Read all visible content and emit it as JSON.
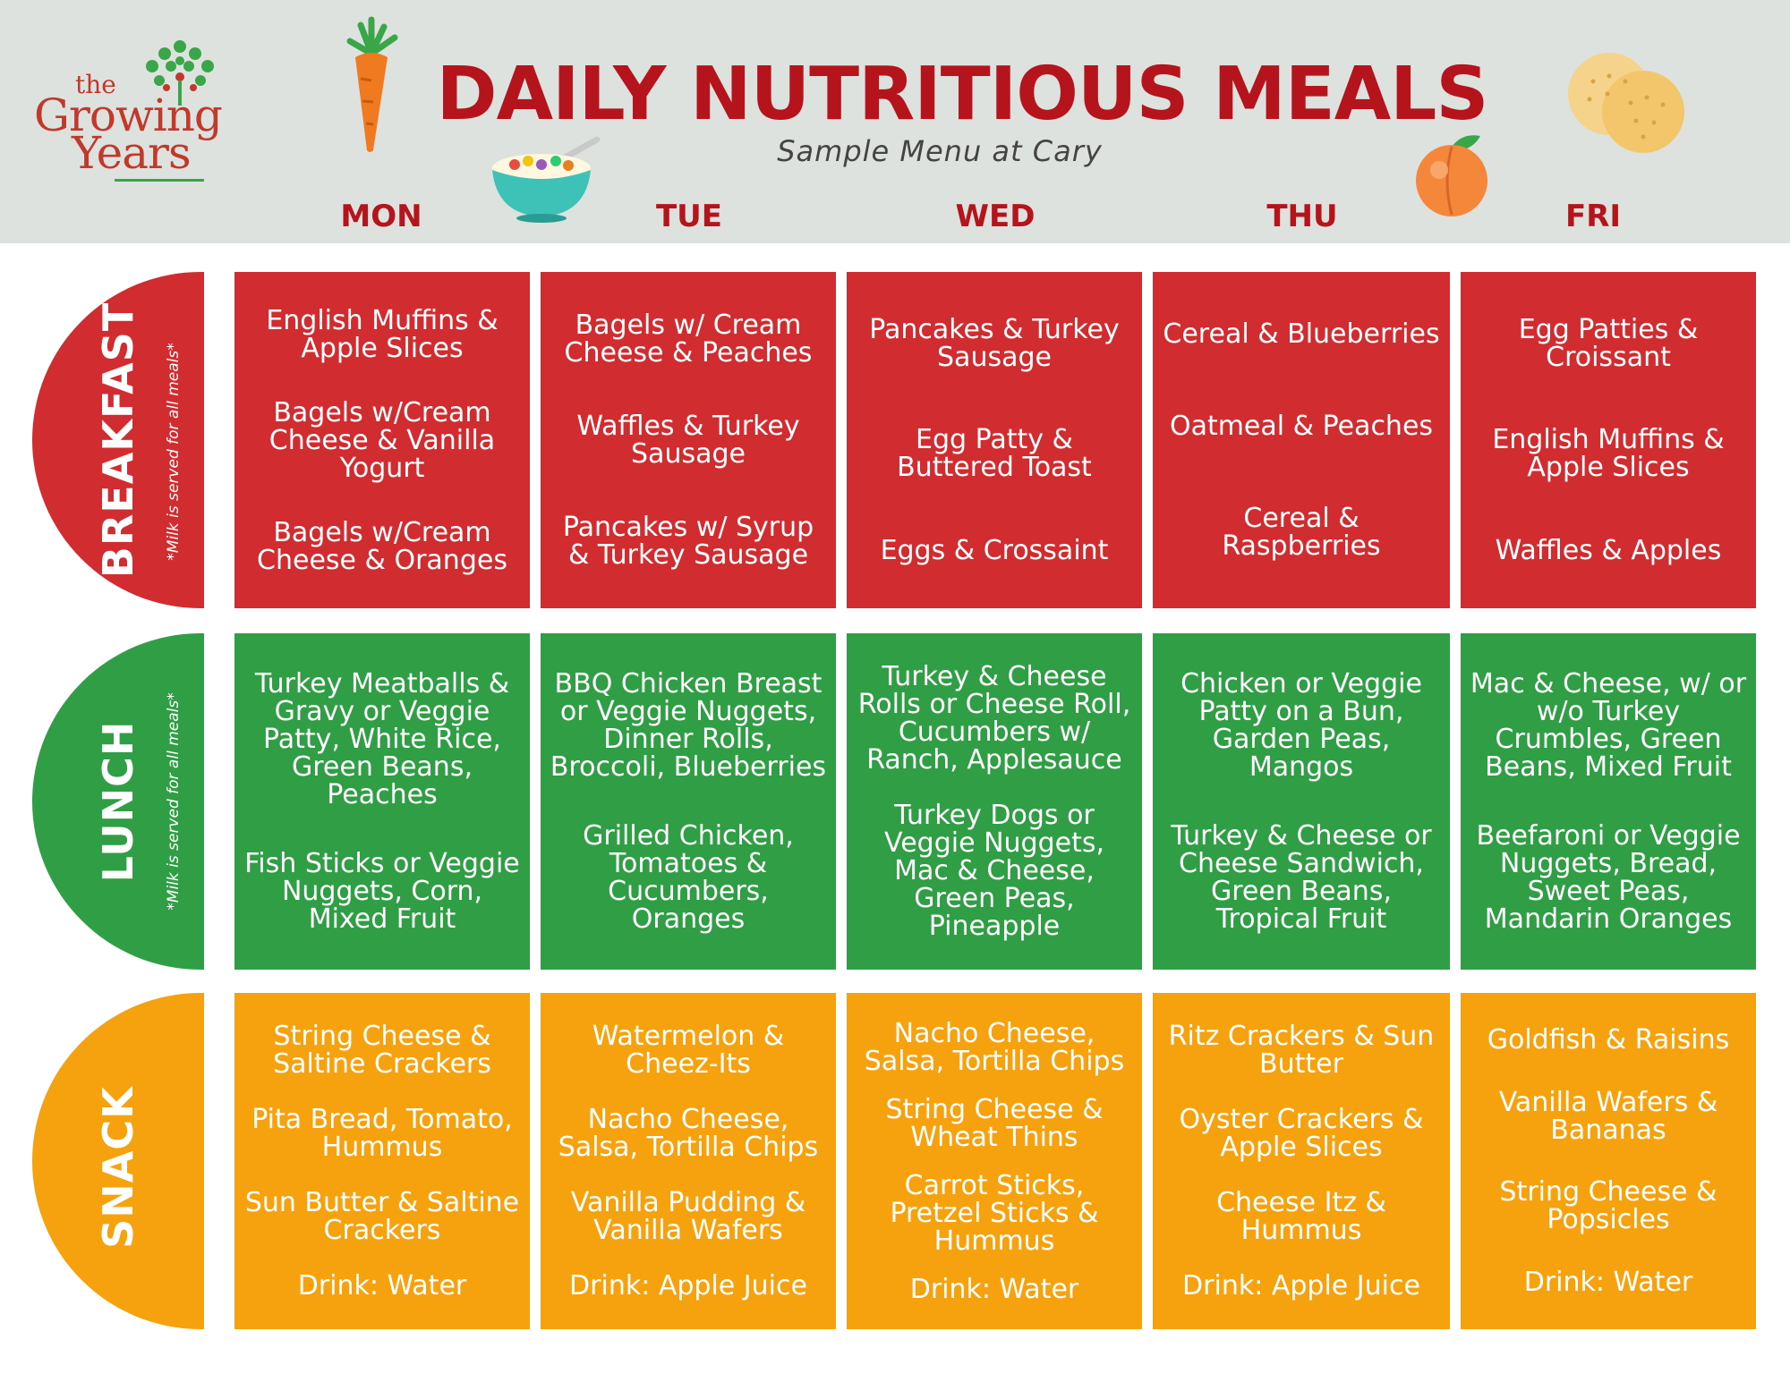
{
  "logo": {
    "line1": "the",
    "line2": "Growing",
    "line3": "Years"
  },
  "header": {
    "title": "DAILY NUTRITIOUS MEALS",
    "subtitle": "Sample Menu at Cary"
  },
  "days": [
    "MON",
    "TUE",
    "WED",
    "THU",
    "FRI"
  ],
  "colors": {
    "breakfast": "#d12d31",
    "lunch": "#2f9e44",
    "snack": "#f6a20f",
    "title": "#b5141c",
    "header_bg": "#dee2df"
  },
  "icons": [
    "carrot-icon",
    "cereal-bowl-icon",
    "peach-icon",
    "crackers-icon",
    "tree-icon"
  ],
  "rows": [
    {
      "label": "BREAKFAST",
      "note": "*Milk is served for all meals*",
      "cells": [
        [
          "English Muffins & Apple Slices",
          "Bagels w/Cream Cheese & Vanilla Yogurt",
          "Bagels w/Cream Cheese & Oranges"
        ],
        [
          "Bagels w/ Cream Cheese & Peaches",
          "Waffles & Turkey Sausage",
          "Pancakes w/ Syrup & Turkey Sausage"
        ],
        [
          "Pancakes & Turkey Sausage",
          "Egg Patty & Buttered Toast",
          "Eggs & Crossaint"
        ],
        [
          "Cereal & Blueberries",
          "Oatmeal & Peaches",
          "Cereal & Raspberries"
        ],
        [
          "Egg Patties & Croissant",
          "English Muffins & Apple Slices",
          "Waffles & Apples"
        ]
      ]
    },
    {
      "label": "LUNCH",
      "note": "*Milk is served for all meals*",
      "cells": [
        [
          "Turkey Meatballs & Gravy or Veggie Patty, White Rice, Green Beans, Peaches",
          "Fish Sticks or Veggie Nuggets, Corn, Mixed Fruit"
        ],
        [
          "BBQ Chicken Breast or Veggie Nuggets, Dinner Rolls, Broccoli, Blueberries",
          "Grilled Chicken, Tomatoes & Cucumbers, Oranges"
        ],
        [
          "Turkey & Cheese Rolls or Cheese Roll, Cucumbers w/ Ranch, Applesauce",
          "Turkey Dogs or Veggie Nuggets, Mac & Cheese, Green Peas, Pineapple"
        ],
        [
          "Chicken or Veggie Patty on a Bun, Garden Peas, Mangos",
          "Turkey & Cheese or Cheese Sandwich, Green Beans, Tropical Fruit"
        ],
        [
          "Mac & Cheese, w/ or w/o Turkey Crumbles, Green Beans, Mixed Fruit",
          "Beefaroni or Veggie Nuggets, Bread, Sweet Peas, Mandarin Oranges"
        ]
      ]
    },
    {
      "label": "SNACK",
      "note": "",
      "cells": [
        [
          "String Cheese & Saltine Crackers",
          "Pita Bread, Tomato, Hummus",
          "Sun Butter & Saltine Crackers",
          "Drink: Water"
        ],
        [
          "Watermelon & Cheez-Its",
          "Nacho Cheese, Salsa, Tortilla Chips",
          "Vanilla Pudding & Vanilla Wafers",
          "Drink: Apple Juice"
        ],
        [
          "Nacho Cheese, Salsa, Tortilla Chips",
          "String Cheese & Wheat Thins",
          "Carrot Sticks, Pretzel Sticks & Hummus",
          "Drink: Water"
        ],
        [
          "Ritz Crackers & Sun Butter",
          "Oyster Crackers & Apple Slices",
          "Cheese Itz & Hummus",
          "Drink: Apple Juice"
        ],
        [
          "Goldfish & Raisins",
          "Vanilla Wafers & Bananas",
          "String Cheese & Popsicles",
          "Drink: Water"
        ]
      ]
    }
  ]
}
